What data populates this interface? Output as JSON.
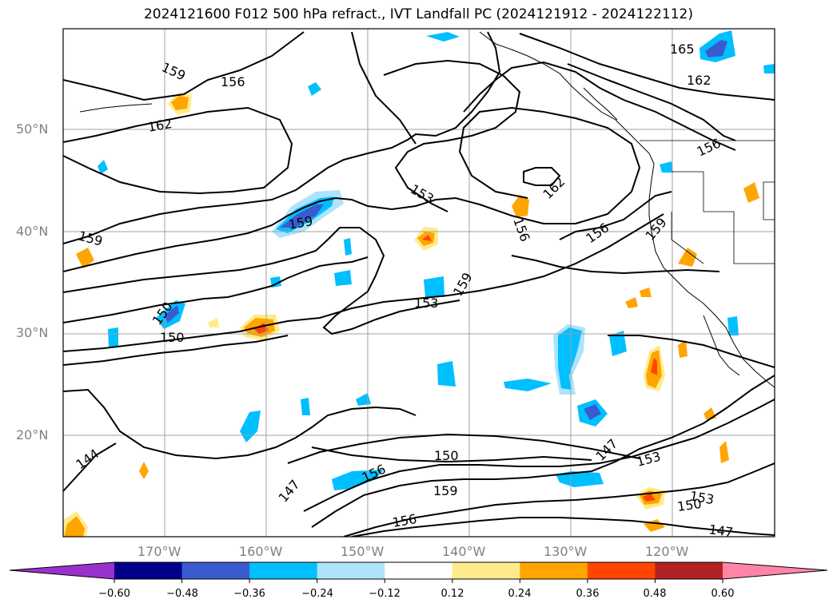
{
  "title": "2024121600 F012 500 hPa refract., IVT Landfall PC (2024121912 - 2024122112)",
  "map": {
    "lat_labels": [
      "50°N",
      "40°N",
      "30°N",
      "20°N"
    ],
    "lon_labels": [
      "170°W",
      "160°W",
      "150°W",
      "140°W",
      "130°W",
      "120°W"
    ],
    "grid": true,
    "contour_labels": [
      "165",
      "159",
      "156",
      "162",
      "162",
      "156",
      "153",
      "162",
      "159",
      "159",
      "156",
      "156",
      "159",
      "150",
      "159",
      "153",
      "150",
      "147",
      "153",
      "144",
      "150",
      "147",
      "156",
      "159",
      "153",
      "150",
      "156",
      "147"
    ]
  },
  "colorbar": {
    "ticks": [
      "−0.60",
      "−0.48",
      "−0.36",
      "−0.24",
      "−0.12",
      "0.12",
      "0.24",
      "0.36",
      "0.48",
      "0.60"
    ],
    "colors": [
      "#9932CC",
      "#00008B",
      "#3A5BD0",
      "#00BFFF",
      "#ADE3FB",
      "#FFFFFF",
      "#FFEB8A",
      "#FFA500",
      "#FF4500",
      "#B22222",
      "#FF85A8"
    ]
  }
}
